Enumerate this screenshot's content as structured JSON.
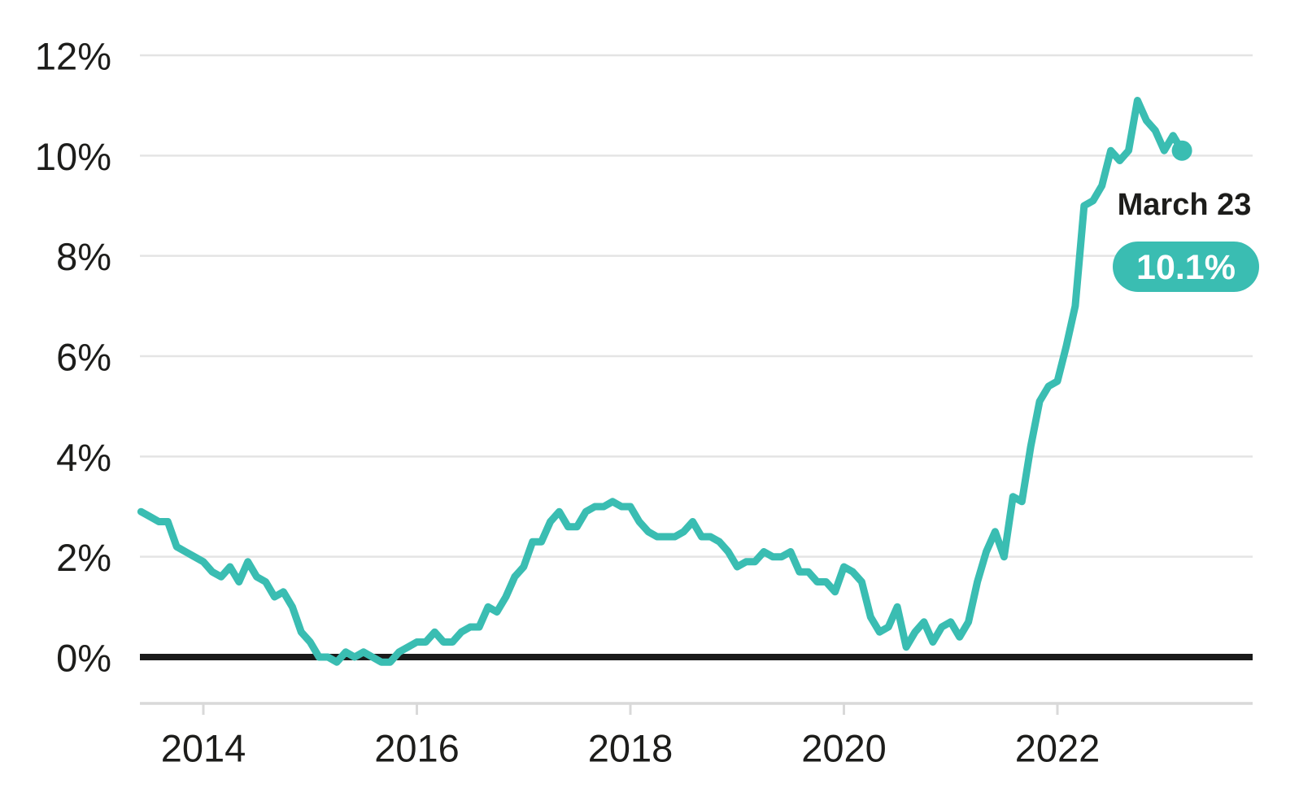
{
  "chart_data": {
    "type": "line",
    "title": "",
    "y_axis": {
      "tick_labels": [
        "0%",
        "2%",
        "4%",
        "6%",
        "8%",
        "10%",
        "12%"
      ],
      "ylim": [
        0,
        12
      ],
      "grid": true
    },
    "x_axis": {
      "tick_labels": [
        "2014",
        "2016",
        "2018",
        "2020",
        "2022"
      ]
    },
    "series": [
      {
        "start_month": "2013-06",
        "frequency": "monthly",
        "values": [
          2.9,
          2.8,
          2.7,
          2.7,
          2.2,
          2.1,
          2.0,
          1.9,
          1.7,
          1.6,
          1.8,
          1.5,
          1.9,
          1.6,
          1.5,
          1.2,
          1.3,
          1.0,
          0.5,
          0.3,
          0.0,
          0.0,
          -0.1,
          0.1,
          0.0,
          0.1,
          0.0,
          -0.1,
          -0.1,
          0.1,
          0.2,
          0.3,
          0.3,
          0.5,
          0.3,
          0.3,
          0.5,
          0.6,
          0.6,
          1.0,
          0.9,
          1.2,
          1.6,
          1.8,
          2.3,
          2.3,
          2.7,
          2.9,
          2.6,
          2.6,
          2.9,
          3.0,
          3.0,
          3.1,
          3.0,
          3.0,
          2.7,
          2.5,
          2.4,
          2.4,
          2.4,
          2.5,
          2.7,
          2.4,
          2.4,
          2.3,
          2.1,
          1.8,
          1.9,
          1.9,
          2.1,
          2.0,
          2.0,
          2.1,
          1.7,
          1.7,
          1.5,
          1.5,
          1.3,
          1.8,
          1.7,
          1.5,
          0.8,
          0.5,
          0.6,
          1.0,
          0.2,
          0.5,
          0.7,
          0.3,
          0.6,
          0.7,
          0.4,
          0.7,
          1.5,
          2.1,
          2.5,
          2.0,
          3.2,
          3.1,
          4.2,
          5.1,
          5.4,
          5.5,
          6.2,
          7.0,
          9.0,
          9.1,
          9.4,
          10.1,
          9.9,
          10.1,
          11.1,
          10.7,
          10.5,
          10.1,
          10.4,
          10.1
        ]
      }
    ],
    "annotation": {
      "label": "March 23",
      "value_label": "10.1%"
    },
    "colors": {
      "line": "#3abdb2",
      "end_dot": "#3abdb2",
      "badge_bg": "#3abdb2",
      "badge_text": "#ffffff",
      "annotation_text": "#1d1d1b",
      "axis_text": "#1d1d1b",
      "gridline": "#e4e4e4",
      "zero_line": "#1a1a1a",
      "axis_line": "#d9d9d9"
    }
  }
}
